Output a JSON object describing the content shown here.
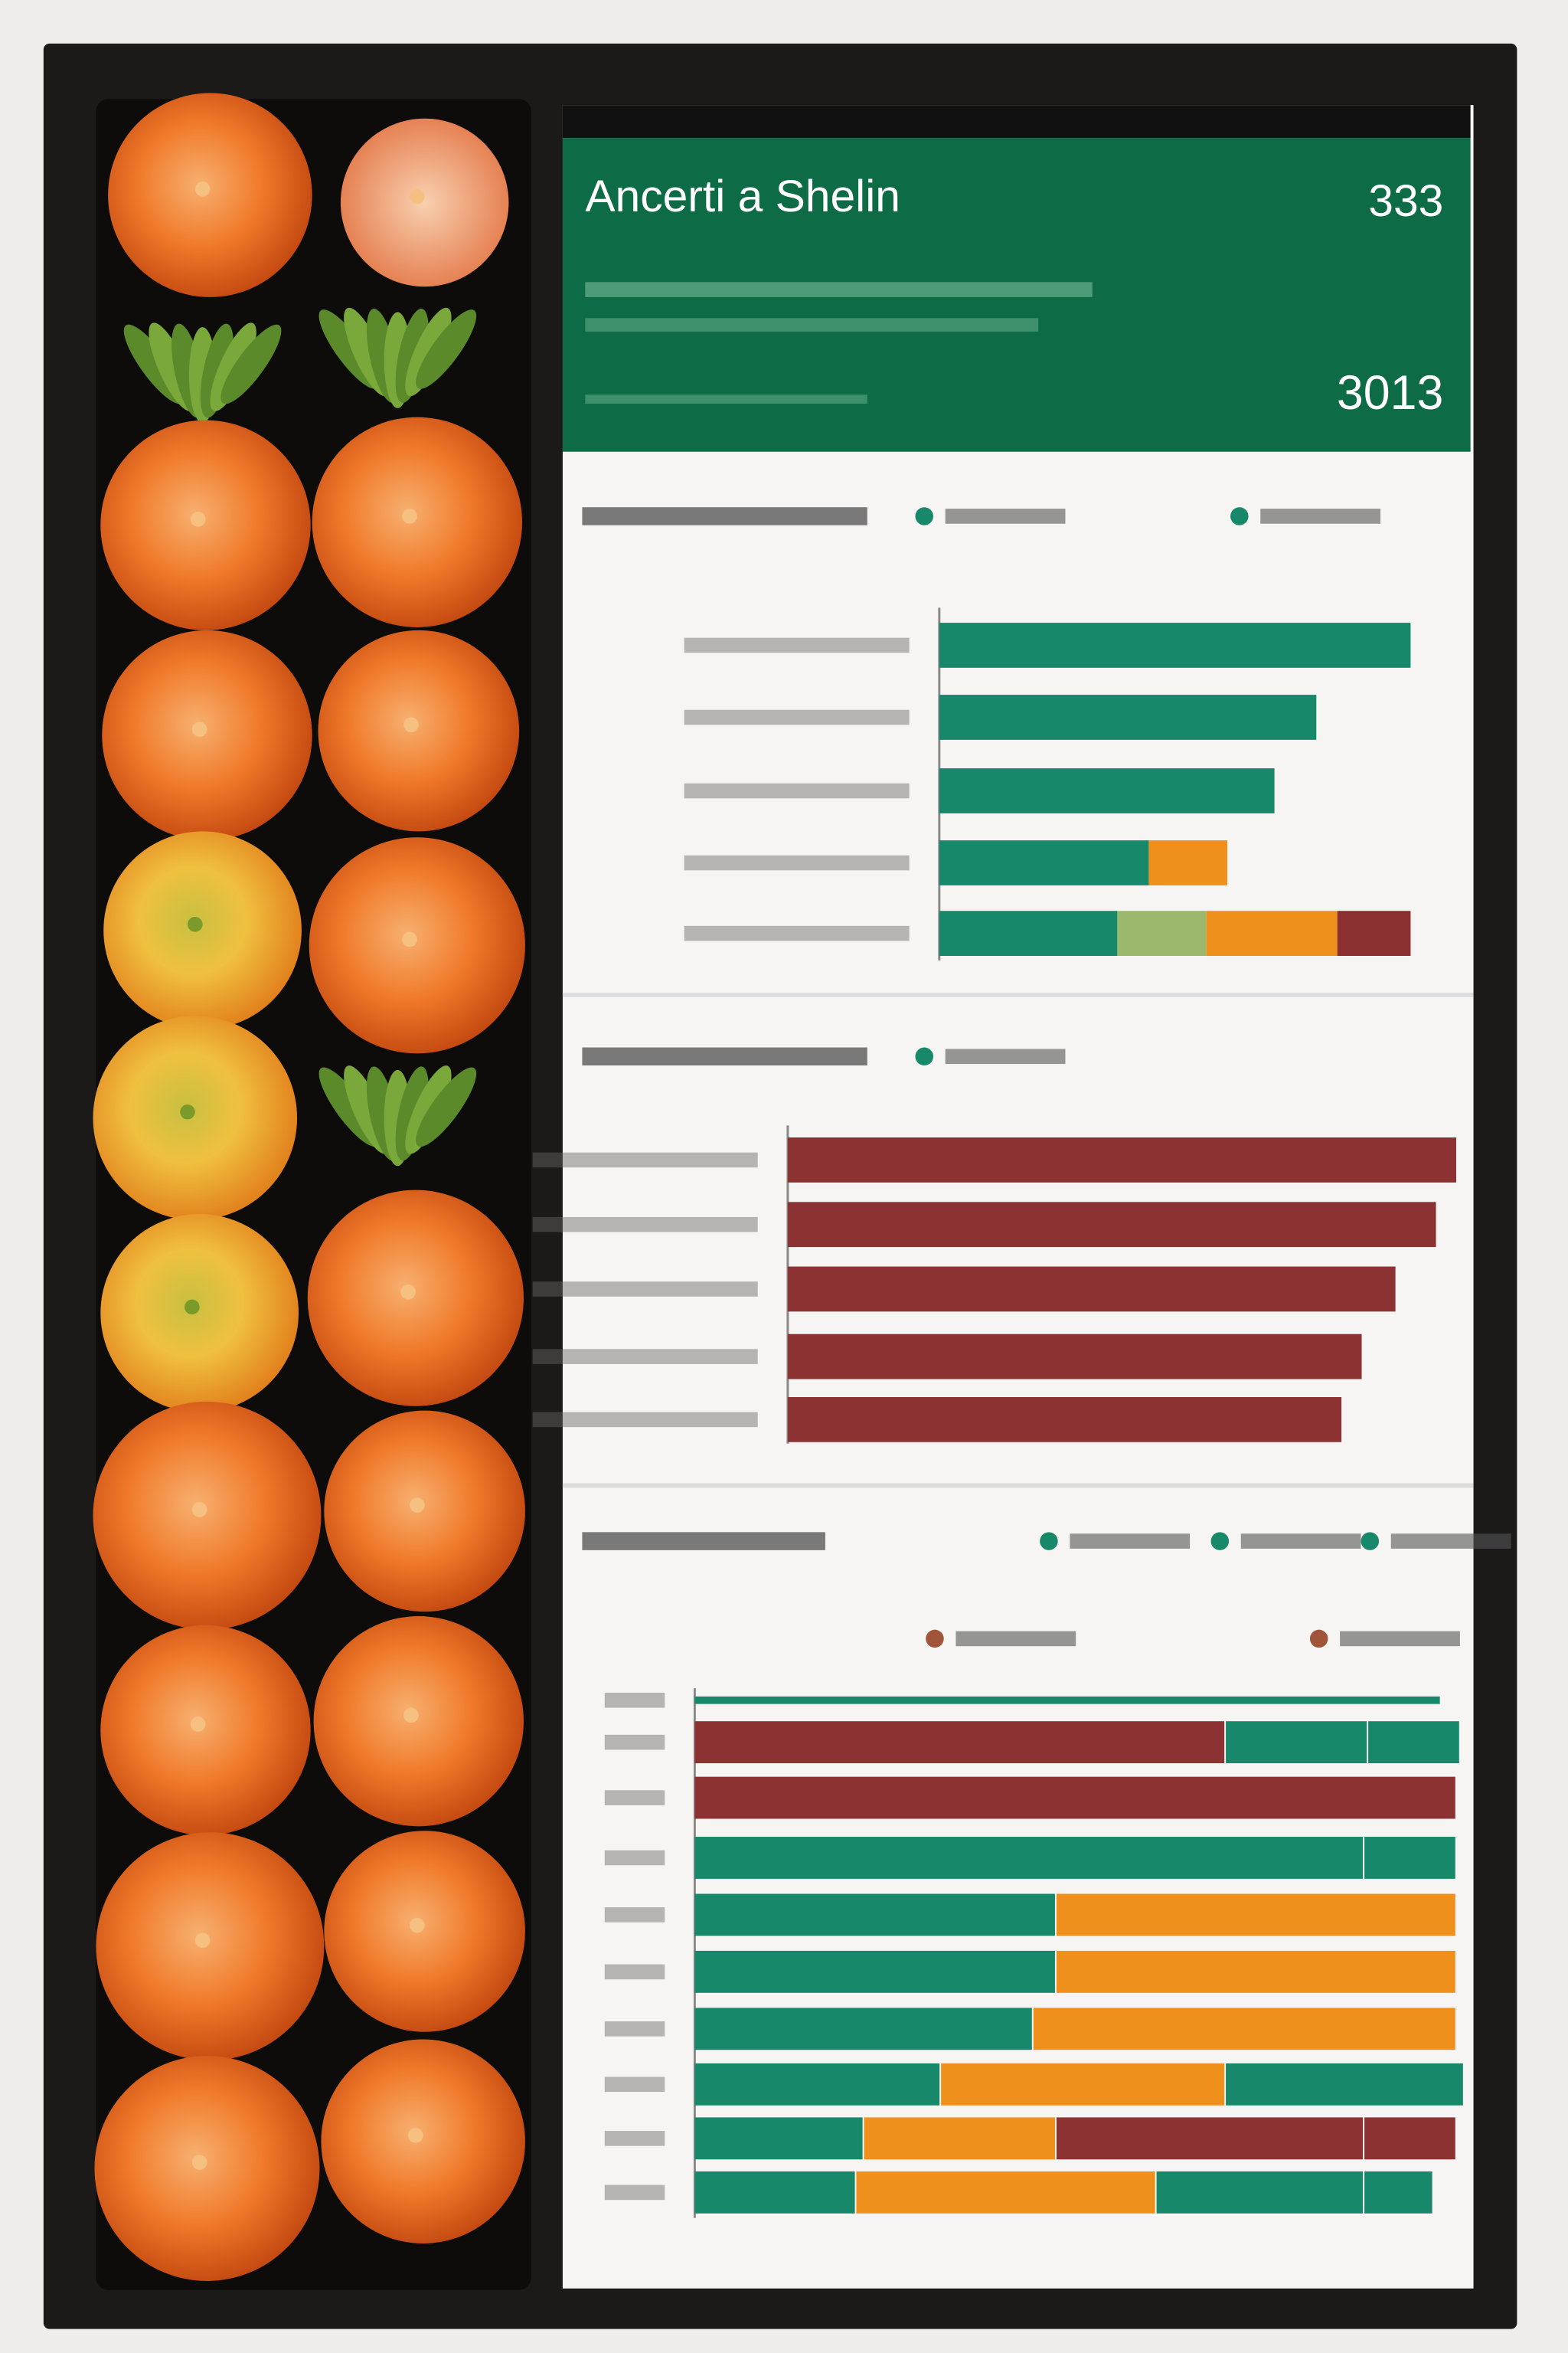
{
  "header": {
    "title": "Ancerti a Shelin",
    "top_value": "333",
    "bottom_value": "3013"
  },
  "chart_data": [
    {
      "type": "bar",
      "orientation": "horizontal",
      "stacked": true,
      "categories": [
        null,
        null,
        null,
        null,
        null
      ],
      "xlim": [
        0,
        100
      ],
      "series": [
        {
          "color": "#17896a",
          "values": [
            90,
            72,
            64,
            40,
            34
          ]
        },
        {
          "color": "#9bb86c",
          "values": [
            0,
            0,
            0,
            0,
            17
          ]
        },
        {
          "color": "#f0901c",
          "values": [
            0,
            0,
            0,
            15,
            25
          ]
        },
        {
          "color": "#8c2f30",
          "values": [
            0,
            0,
            0,
            0,
            14
          ]
        }
      ]
    },
    {
      "type": "bar",
      "orientation": "horizontal",
      "stacked": true,
      "categories": [
        null,
        null,
        null,
        null,
        null
      ],
      "xlim": [
        0,
        100
      ],
      "series": [
        {
          "color": "#8c3232",
          "values": [
            99,
            96,
            90,
            85,
            82
          ]
        }
      ]
    },
    {
      "type": "segments",
      "orientation": "horizontal",
      "categories": [
        null,
        null,
        null,
        null,
        null,
        null,
        null,
        null,
        null,
        null
      ],
      "xlim": [
        0,
        100
      ],
      "segments": [
        [
          97
        ],
        [
          69,
          18.5,
          12
        ],
        [
          99
        ],
        [
          87,
          12
        ],
        [
          47,
          52
        ],
        [
          47,
          52
        ],
        [
          44,
          55
        ],
        [
          32,
          37,
          31
        ],
        [
          22,
          25,
          40,
          12
        ],
        [
          21,
          39,
          27,
          9
        ]
      ],
      "segment_colors": [
        [
          "#17896a"
        ],
        [
          "#8c3232",
          "#17896a",
          "#17896a"
        ],
        [
          "#8c3232"
        ],
        [
          "#17896a",
          "#17896a"
        ],
        [
          "#17896a",
          "#f0901c"
        ],
        [
          "#17896a",
          "#f0901c"
        ],
        [
          "#17896a",
          "#f0901c"
        ],
        [
          "#17896a",
          "#f0901c",
          "#17896a"
        ],
        [
          "#17896a",
          "#f0901c",
          "#8c3232",
          "#8c3232"
        ],
        [
          "#17896a",
          "#f0901c",
          "#17896a",
          "#17896a"
        ]
      ]
    }
  ]
}
